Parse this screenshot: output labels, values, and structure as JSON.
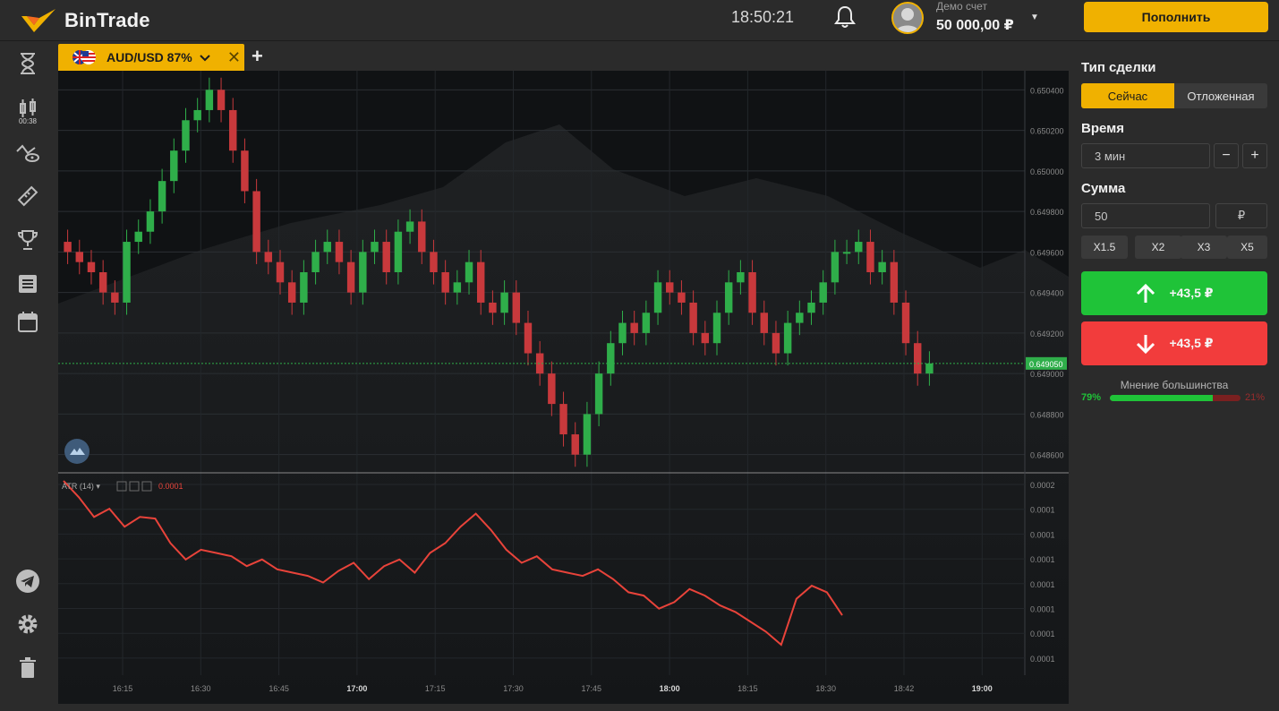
{
  "header": {
    "logo_text": "BinTrade",
    "clock": "18:50:21",
    "account_label": "Демо счет",
    "account_balance": "50 000,00 ₽",
    "deposit_label": "Пополнить"
  },
  "sidebar": {
    "timer": "00:38",
    "items": [
      "hourglass-icon",
      "candles-icon",
      "indicators-icon",
      "ruler-icon",
      "trophy-icon",
      "list-icon",
      "calendar-icon",
      "telegram-icon",
      "gear-icon",
      "trash-icon"
    ]
  },
  "tabs": {
    "asset_label": "AUD/USD 87%",
    "add_label": "+",
    "close_label": "✕"
  },
  "panel": {
    "trade_type_label": "Тип сделки",
    "trade_type_options": [
      "Сейчас",
      "Отложенная"
    ],
    "trade_type_selected": "Сейчас",
    "time_label": "Время",
    "time_value": "3 мин",
    "minus_label": "−",
    "plus_label": "+",
    "amount_label": "Сумма",
    "amount_value": "50",
    "currency_label": "₽",
    "multipliers": [
      "X1.5",
      "X2",
      "X3",
      "X5"
    ],
    "up_label": "+43,5 ₽",
    "down_label": "+43,5 ₽",
    "majority_label": "Мнение большинства",
    "majority_up": "79%",
    "majority_down": "21%",
    "majority_up_fraction": 0.79
  },
  "colors": {
    "accent": "#f0b100",
    "up": "#1fc338",
    "down": "#f23c3c",
    "candle_up": "#2fae4a",
    "candle_down": "#c8393c",
    "atr_line": "#e8433a"
  },
  "chart_data": [
    {
      "type": "candlestick",
      "symbol": "AUD/USD",
      "current_price": "0.649050",
      "y_ticks": [
        "0.650400",
        "0.650200",
        "0.650000",
        "0.649800",
        "0.649600",
        "0.649400",
        "0.649200",
        "0.649000",
        "0.648800",
        "0.648600"
      ],
      "ylim": [
        0.64855,
        0.65045
      ],
      "close": [
        0.6496,
        0.64955,
        0.6495,
        0.6494,
        0.64935,
        0.64965,
        0.6497,
        0.6498,
        0.64995,
        0.6501,
        0.65025,
        0.6503,
        0.6504,
        0.6503,
        0.6501,
        0.6499,
        0.6496,
        0.64955,
        0.64945,
        0.64935,
        0.6495,
        0.6496,
        0.64965,
        0.64955,
        0.6494,
        0.6496,
        0.64965,
        0.6495,
        0.6497,
        0.64975,
        0.6496,
        0.6495,
        0.6494,
        0.64945,
        0.64955,
        0.64935,
        0.6493,
        0.6494,
        0.64925,
        0.6491,
        0.649,
        0.64885,
        0.6487,
        0.6486,
        0.6488,
        0.649,
        0.64915,
        0.64925,
        0.6492,
        0.6493,
        0.64945,
        0.6494,
        0.64935,
        0.6492,
        0.64915,
        0.6493,
        0.64945,
        0.6495,
        0.6493,
        0.6492,
        0.6491,
        0.64925,
        0.6493,
        0.64935,
        0.64945,
        0.6496,
        0.6496,
        0.64965,
        0.6495,
        0.64955,
        0.64935,
        0.64915,
        0.649,
        0.64905
      ],
      "open": [
        0.64965,
        0.6496,
        0.64955,
        0.6495,
        0.6494,
        0.64935,
        0.64965,
        0.6497,
        0.6498,
        0.64995,
        0.6501,
        0.65025,
        0.6503,
        0.6504,
        0.6503,
        0.6501,
        0.6499,
        0.6496,
        0.64955,
        0.64945,
        0.64935,
        0.6495,
        0.6496,
        0.64965,
        0.64955,
        0.6494,
        0.6496,
        0.64965,
        0.6495,
        0.6497,
        0.64975,
        0.6496,
        0.6495,
        0.6494,
        0.64945,
        0.64955,
        0.64935,
        0.6493,
        0.6494,
        0.64925,
        0.6491,
        0.649,
        0.64885,
        0.6487,
        0.6486,
        0.6488,
        0.649,
        0.64915,
        0.64925,
        0.6492,
        0.6493,
        0.64945,
        0.6494,
        0.64935,
        0.6492,
        0.64915,
        0.6493,
        0.64945,
        0.6495,
        0.6493,
        0.6492,
        0.6491,
        0.64925,
        0.6493,
        0.64935,
        0.64945,
        0.6496,
        0.6496,
        0.64965,
        0.6495,
        0.64955,
        0.64935,
        0.64915,
        0.649
      ]
    },
    {
      "type": "line",
      "name": "ATR (14)",
      "value_label": "0.0001",
      "y_ticks": [
        "0.0002",
        "0.0001",
        "0.0001",
        "0.0001",
        "0.0001",
        "0.0001",
        "0.0001",
        "0.0001"
      ],
      "values": [
        1.0,
        0.9,
        0.78,
        0.83,
        0.72,
        0.78,
        0.77,
        0.62,
        0.52,
        0.58,
        0.56,
        0.54,
        0.48,
        0.52,
        0.46,
        0.44,
        0.42,
        0.38,
        0.45,
        0.5,
        0.4,
        0.48,
        0.52,
        0.44,
        0.56,
        0.62,
        0.72,
        0.8,
        0.7,
        0.58,
        0.5,
        0.54,
        0.46,
        0.44,
        0.42,
        0.46,
        0.4,
        0.32,
        0.3,
        0.22,
        0.26,
        0.34,
        0.3,
        0.24,
        0.2,
        0.14,
        0.08,
        0.0,
        0.28,
        0.36,
        0.32,
        0.18
      ]
    }
  ],
  "x_ticks": [
    "16:15",
    "16:30",
    "16:45",
    "17:00",
    "17:15",
    "17:30",
    "17:45",
    "18:00",
    "18:15",
    "18:30",
    "18:42",
    "19:00"
  ]
}
